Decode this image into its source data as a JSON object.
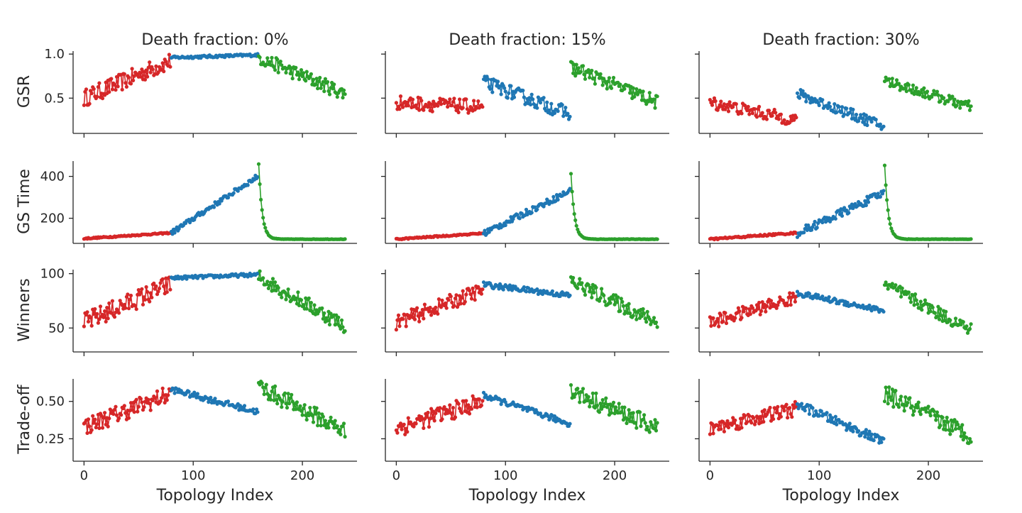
{
  "figure": {
    "columns": [
      "Death fraction: 0%",
      "Death fraction: 15%",
      "Death fraction: 30%"
    ],
    "rows": [
      "GSR",
      "GS Time",
      "Winners",
      "Trade-off"
    ],
    "xlabel": "Topology Index"
  },
  "series_colors": {
    "first": "#d62728",
    "second": "#1f77b4",
    "third": "#2ca02c",
    "axis": "#262626"
  },
  "chart_data": [
    {
      "type": "line",
      "column": 0,
      "row": 0,
      "ylabel": "GSR",
      "xlim": [
        -10,
        250
      ],
      "ylim": [
        0.1,
        1.05
      ],
      "yticks": [
        0.5,
        1.0
      ],
      "ytick_labels": [
        "0.5",
        "1.0"
      ],
      "xticks": [
        0,
        100,
        200
      ],
      "xtick_labels": [
        "0",
        "100",
        "200"
      ],
      "series": [
        {
          "x_range": [
            0,
            79
          ],
          "start": 0.5,
          "end": 0.92,
          "noise": 0.1
        },
        {
          "x_range": [
            80,
            159
          ],
          "start": 0.96,
          "end": 0.99,
          "noise": 0.015
        },
        {
          "x_range": [
            160,
            239
          ],
          "start": 0.96,
          "end": 0.55,
          "noise": 0.08
        }
      ]
    },
    {
      "type": "line",
      "column": 0,
      "row": 1,
      "ylabel": "GS Time",
      "xlim": [
        -10,
        250
      ],
      "ylim": [
        80,
        480
      ],
      "yticks": [
        200,
        400
      ],
      "ytick_labels": [
        "200",
        "400"
      ],
      "xticks": [
        0,
        100,
        200
      ],
      "xtick_labels": [
        "0",
        "100",
        "200"
      ],
      "series": [
        {
          "x_range": [
            0,
            79
          ],
          "start": 103,
          "end": 130,
          "noise": 3
        },
        {
          "x_range": [
            80,
            159
          ],
          "start": 130,
          "end": 400,
          "noise": 12
        },
        {
          "x_range": [
            160,
            239
          ],
          "start": 460,
          "end": 100,
          "noise": 3,
          "decay": true
        }
      ]
    },
    {
      "type": "line",
      "column": 0,
      "row": 2,
      "ylabel": "Winners",
      "xlim": [
        -10,
        250
      ],
      "ylim": [
        28,
        105
      ],
      "yticks": [
        50,
        100
      ],
      "ytick_labels": [
        "50",
        "100"
      ],
      "xticks": [
        0,
        100,
        200
      ],
      "xtick_labels": [
        "0",
        "100",
        "200"
      ],
      "series": [
        {
          "x_range": [
            0,
            79
          ],
          "start": 55,
          "end": 90,
          "noise": 9
        },
        {
          "x_range": [
            80,
            159
          ],
          "start": 96,
          "end": 99,
          "noise": 1.5
        },
        {
          "x_range": [
            160,
            239
          ],
          "start": 97,
          "end": 52,
          "noise": 7
        }
      ]
    },
    {
      "type": "line",
      "column": 0,
      "row": 3,
      "ylabel": "Trade-off",
      "xlim": [
        -10,
        250
      ],
      "ylim": [
        0.1,
        0.66
      ],
      "yticks": [
        0.25,
        0.5
      ],
      "ytick_labels": [
        "0.25",
        "0.50"
      ],
      "xticks": [
        0,
        100,
        200
      ],
      "xtick_labels": [
        "0",
        "100",
        "200"
      ],
      "series": [
        {
          "x_range": [
            0,
            79
          ],
          "start": 0.33,
          "end": 0.55,
          "noise": 0.06
        },
        {
          "x_range": [
            80,
            159
          ],
          "start": 0.58,
          "end": 0.43,
          "noise": 0.02
        },
        {
          "x_range": [
            160,
            239
          ],
          "start": 0.6,
          "end": 0.3,
          "noise": 0.06
        }
      ]
    },
    {
      "type": "line",
      "column": 1,
      "row": 0,
      "ylabel": "",
      "xlim": [
        -10,
        250
      ],
      "ylim": [
        0.1,
        1.05
      ],
      "yticks": [
        0.5,
        1.0
      ],
      "ytick_labels": [
        "",
        ""
      ],
      "xticks": [
        0,
        100,
        200
      ],
      "xtick_labels": [
        "0",
        "100",
        "200"
      ],
      "series": [
        {
          "x_range": [
            0,
            79
          ],
          "start": 0.45,
          "end": 0.4,
          "noise": 0.08
        },
        {
          "x_range": [
            80,
            159
          ],
          "start": 0.68,
          "end": 0.32,
          "noise": 0.08
        },
        {
          "x_range": [
            160,
            239
          ],
          "start": 0.85,
          "end": 0.45,
          "noise": 0.08
        }
      ]
    },
    {
      "type": "line",
      "column": 1,
      "row": 1,
      "ylabel": "",
      "xlim": [
        -10,
        250
      ],
      "ylim": [
        80,
        480
      ],
      "yticks": [
        200,
        400
      ],
      "ytick_labels": [
        "",
        ""
      ],
      "xticks": [
        0,
        100,
        200
      ],
      "xtick_labels": [
        "0",
        "100",
        "200"
      ],
      "series": [
        {
          "x_range": [
            0,
            79
          ],
          "start": 100,
          "end": 128,
          "noise": 3
        },
        {
          "x_range": [
            80,
            159
          ],
          "start": 128,
          "end": 330,
          "noise": 15
        },
        {
          "x_range": [
            160,
            239
          ],
          "start": 415,
          "end": 100,
          "noise": 3,
          "decay": true
        }
      ]
    },
    {
      "type": "line",
      "column": 1,
      "row": 2,
      "ylabel": "",
      "xlim": [
        -10,
        250
      ],
      "ylim": [
        28,
        105
      ],
      "yticks": [
        50,
        100
      ],
      "ytick_labels": [
        "",
        ""
      ],
      "xticks": [
        0,
        100,
        200
      ],
      "xtick_labels": [
        "0",
        "100",
        "200"
      ],
      "series": [
        {
          "x_range": [
            0,
            79
          ],
          "start": 55,
          "end": 85,
          "noise": 7
        },
        {
          "x_range": [
            80,
            159
          ],
          "start": 90,
          "end": 80,
          "noise": 2.5
        },
        {
          "x_range": [
            160,
            239
          ],
          "start": 93,
          "end": 55,
          "noise": 7
        }
      ]
    },
    {
      "type": "line",
      "column": 1,
      "row": 3,
      "ylabel": "",
      "xlim": [
        -10,
        250
      ],
      "ylim": [
        0.1,
        0.66
      ],
      "yticks": [
        0.25,
        0.5
      ],
      "ytick_labels": [
        "",
        ""
      ],
      "xticks": [
        0,
        100,
        200
      ],
      "xtick_labels": [
        "0",
        "100",
        "200"
      ],
      "series": [
        {
          "x_range": [
            0,
            79
          ],
          "start": 0.32,
          "end": 0.5,
          "noise": 0.06
        },
        {
          "x_range": [
            80,
            159
          ],
          "start": 0.54,
          "end": 0.35,
          "noise": 0.02
        },
        {
          "x_range": [
            160,
            239
          ],
          "start": 0.57,
          "end": 0.32,
          "noise": 0.06
        }
      ]
    },
    {
      "type": "line",
      "column": 2,
      "row": 0,
      "ylabel": "",
      "xlim": [
        -10,
        250
      ],
      "ylim": [
        0.1,
        1.05
      ],
      "yticks": [
        0.5,
        1.0
      ],
      "ytick_labels": [
        "",
        ""
      ],
      "xticks": [
        0,
        100,
        200
      ],
      "xtick_labels": [
        "0",
        "100",
        "200"
      ],
      "series": [
        {
          "x_range": [
            0,
            79
          ],
          "start": 0.45,
          "end": 0.25,
          "noise": 0.07
        },
        {
          "x_range": [
            80,
            159
          ],
          "start": 0.55,
          "end": 0.18,
          "noise": 0.06
        },
        {
          "x_range": [
            160,
            239
          ],
          "start": 0.7,
          "end": 0.4,
          "noise": 0.06
        }
      ]
    },
    {
      "type": "line",
      "column": 2,
      "row": 1,
      "ylabel": "",
      "xlim": [
        -10,
        250
      ],
      "ylim": [
        80,
        480
      ],
      "yticks": [
        200,
        400
      ],
      "ytick_labels": [
        "",
        ""
      ],
      "xticks": [
        0,
        100,
        200
      ],
      "xtick_labels": [
        "0",
        "100",
        "200"
      ],
      "series": [
        {
          "x_range": [
            0,
            79
          ],
          "start": 100,
          "end": 130,
          "noise": 4
        },
        {
          "x_range": [
            80,
            159
          ],
          "start": 128,
          "end": 320,
          "noise": 20
        },
        {
          "x_range": [
            160,
            239
          ],
          "start": 455,
          "end": 100,
          "noise": 3,
          "decay": true
        }
      ]
    },
    {
      "type": "line",
      "column": 2,
      "row": 2,
      "ylabel": "",
      "xlim": [
        -10,
        250
      ],
      "ylim": [
        28,
        105
      ],
      "yticks": [
        50,
        100
      ],
      "ytick_labels": [
        "",
        ""
      ],
      "xticks": [
        0,
        100,
        200
      ],
      "xtick_labels": [
        "0",
        "100",
        "200"
      ],
      "series": [
        {
          "x_range": [
            0,
            79
          ],
          "start": 55,
          "end": 78,
          "noise": 6
        },
        {
          "x_range": [
            80,
            159
          ],
          "start": 82,
          "end": 66,
          "noise": 2.5
        },
        {
          "x_range": [
            160,
            239
          ],
          "start": 90,
          "end": 48,
          "noise": 6
        }
      ]
    },
    {
      "type": "line",
      "column": 2,
      "row": 3,
      "ylabel": "",
      "xlim": [
        -10,
        250
      ],
      "ylim": [
        0.1,
        0.66
      ],
      "yticks": [
        0.25,
        0.5
      ],
      "ytick_labels": [
        "",
        ""
      ],
      "xticks": [
        0,
        100,
        200
      ],
      "xtick_labels": [
        "0",
        "100",
        "200"
      ],
      "series": [
        {
          "x_range": [
            0,
            79
          ],
          "start": 0.32,
          "end": 0.45,
          "noise": 0.05
        },
        {
          "x_range": [
            80,
            159
          ],
          "start": 0.48,
          "end": 0.23,
          "noise": 0.03
        },
        {
          "x_range": [
            160,
            239
          ],
          "start": 0.55,
          "end": 0.27,
          "noise": 0.06
        }
      ]
    }
  ]
}
